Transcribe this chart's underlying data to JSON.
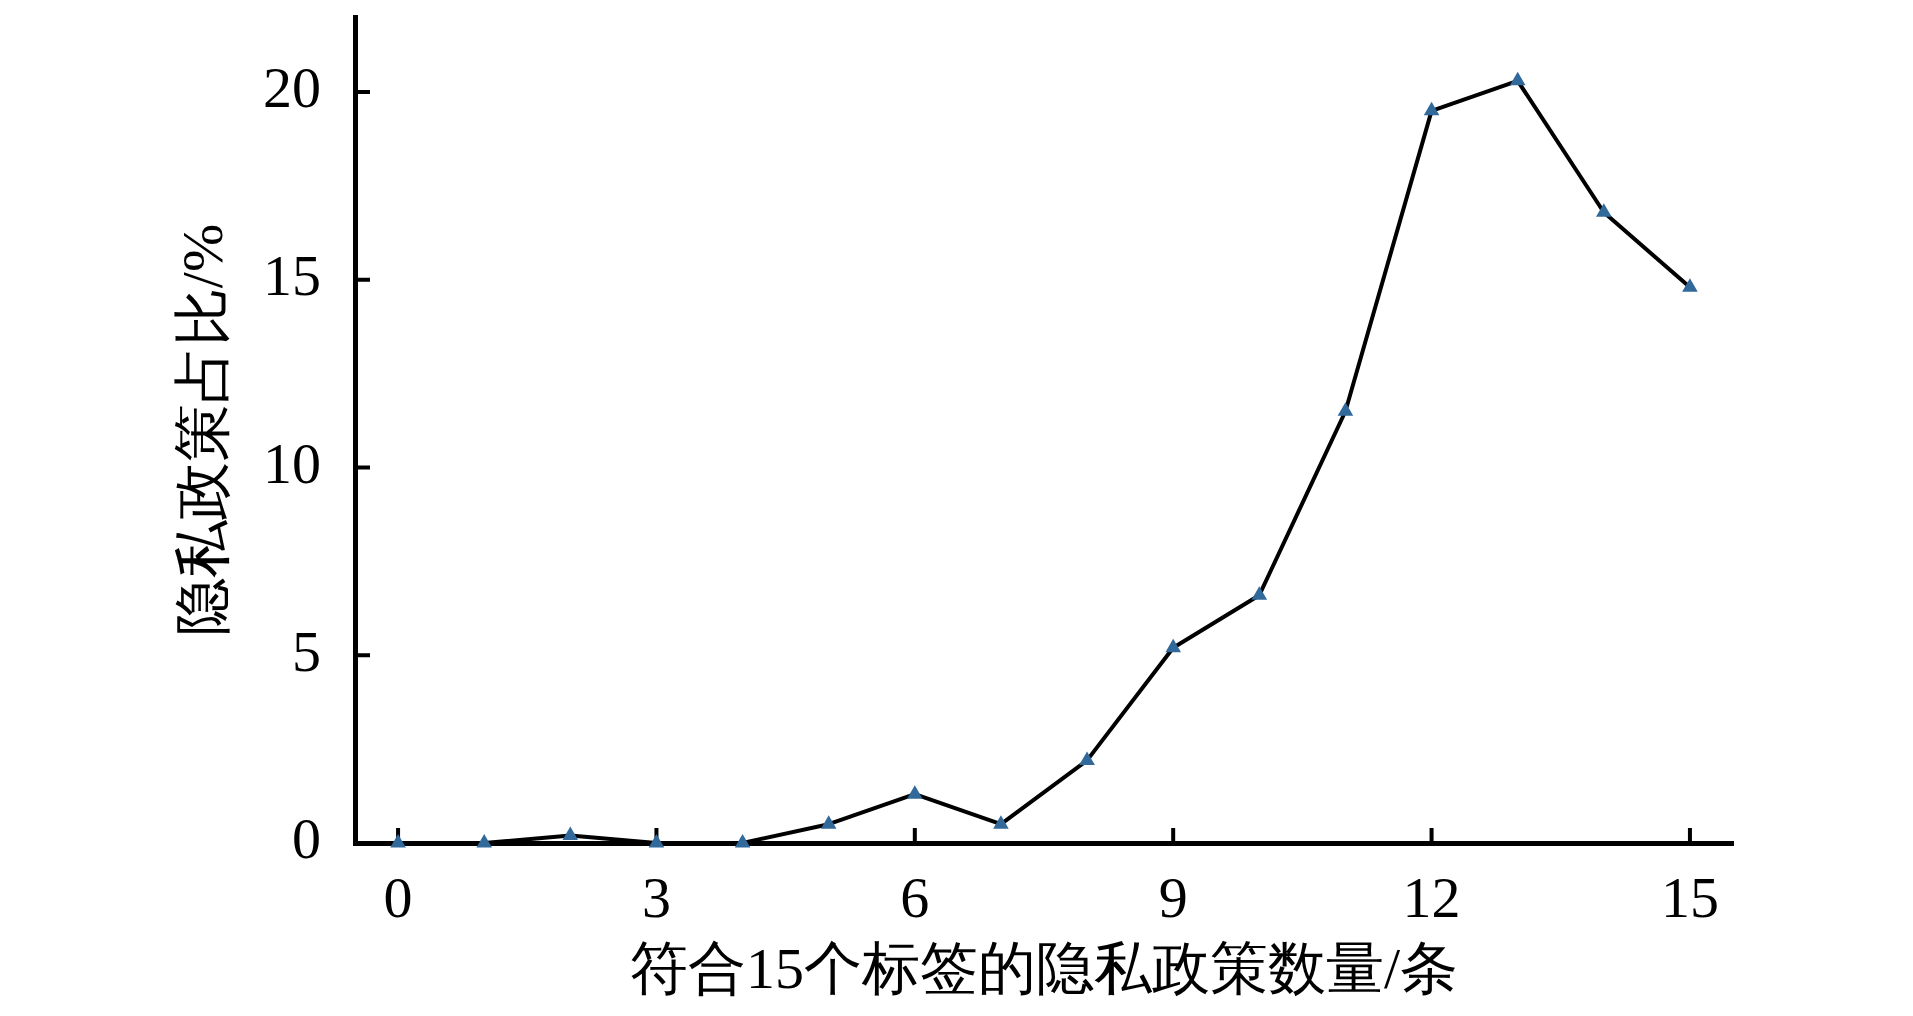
{
  "chart_data": {
    "type": "line",
    "xlabel": "符合15个标签的隐私政策数量/条",
    "ylabel": "隐私政策占比/%",
    "x": [
      0,
      1,
      2,
      3,
      4,
      5,
      6,
      7,
      8,
      9,
      10,
      11,
      12,
      13,
      14,
      15
    ],
    "values": [
      0,
      0,
      0.2,
      0,
      0,
      0.5,
      1.3,
      0.5,
      2.2,
      5.2,
      6.6,
      11.5,
      19.5,
      20.3,
      16.8,
      14.8
    ],
    "color": "#000000",
    "colors": [
      "#31699b",
      "#31699b",
      "#31699b",
      "#31699b",
      "#31699b",
      "#31699b",
      "#31699b",
      "#31699b",
      "#31699b",
      "#31699b",
      "#31699b",
      "#31699b",
      "#31699b",
      "#31699b",
      "#31699b",
      "#31699b"
    ],
    "marker": "triangle",
    "line_style": "solid",
    "xlim": [
      -0.5,
      15.5
    ],
    "ylim": [
      0,
      22
    ],
    "xticks": [
      0,
      3,
      6,
      9,
      12,
      15
    ],
    "yticks": [
      0,
      5,
      10,
      15,
      20
    ]
  }
}
